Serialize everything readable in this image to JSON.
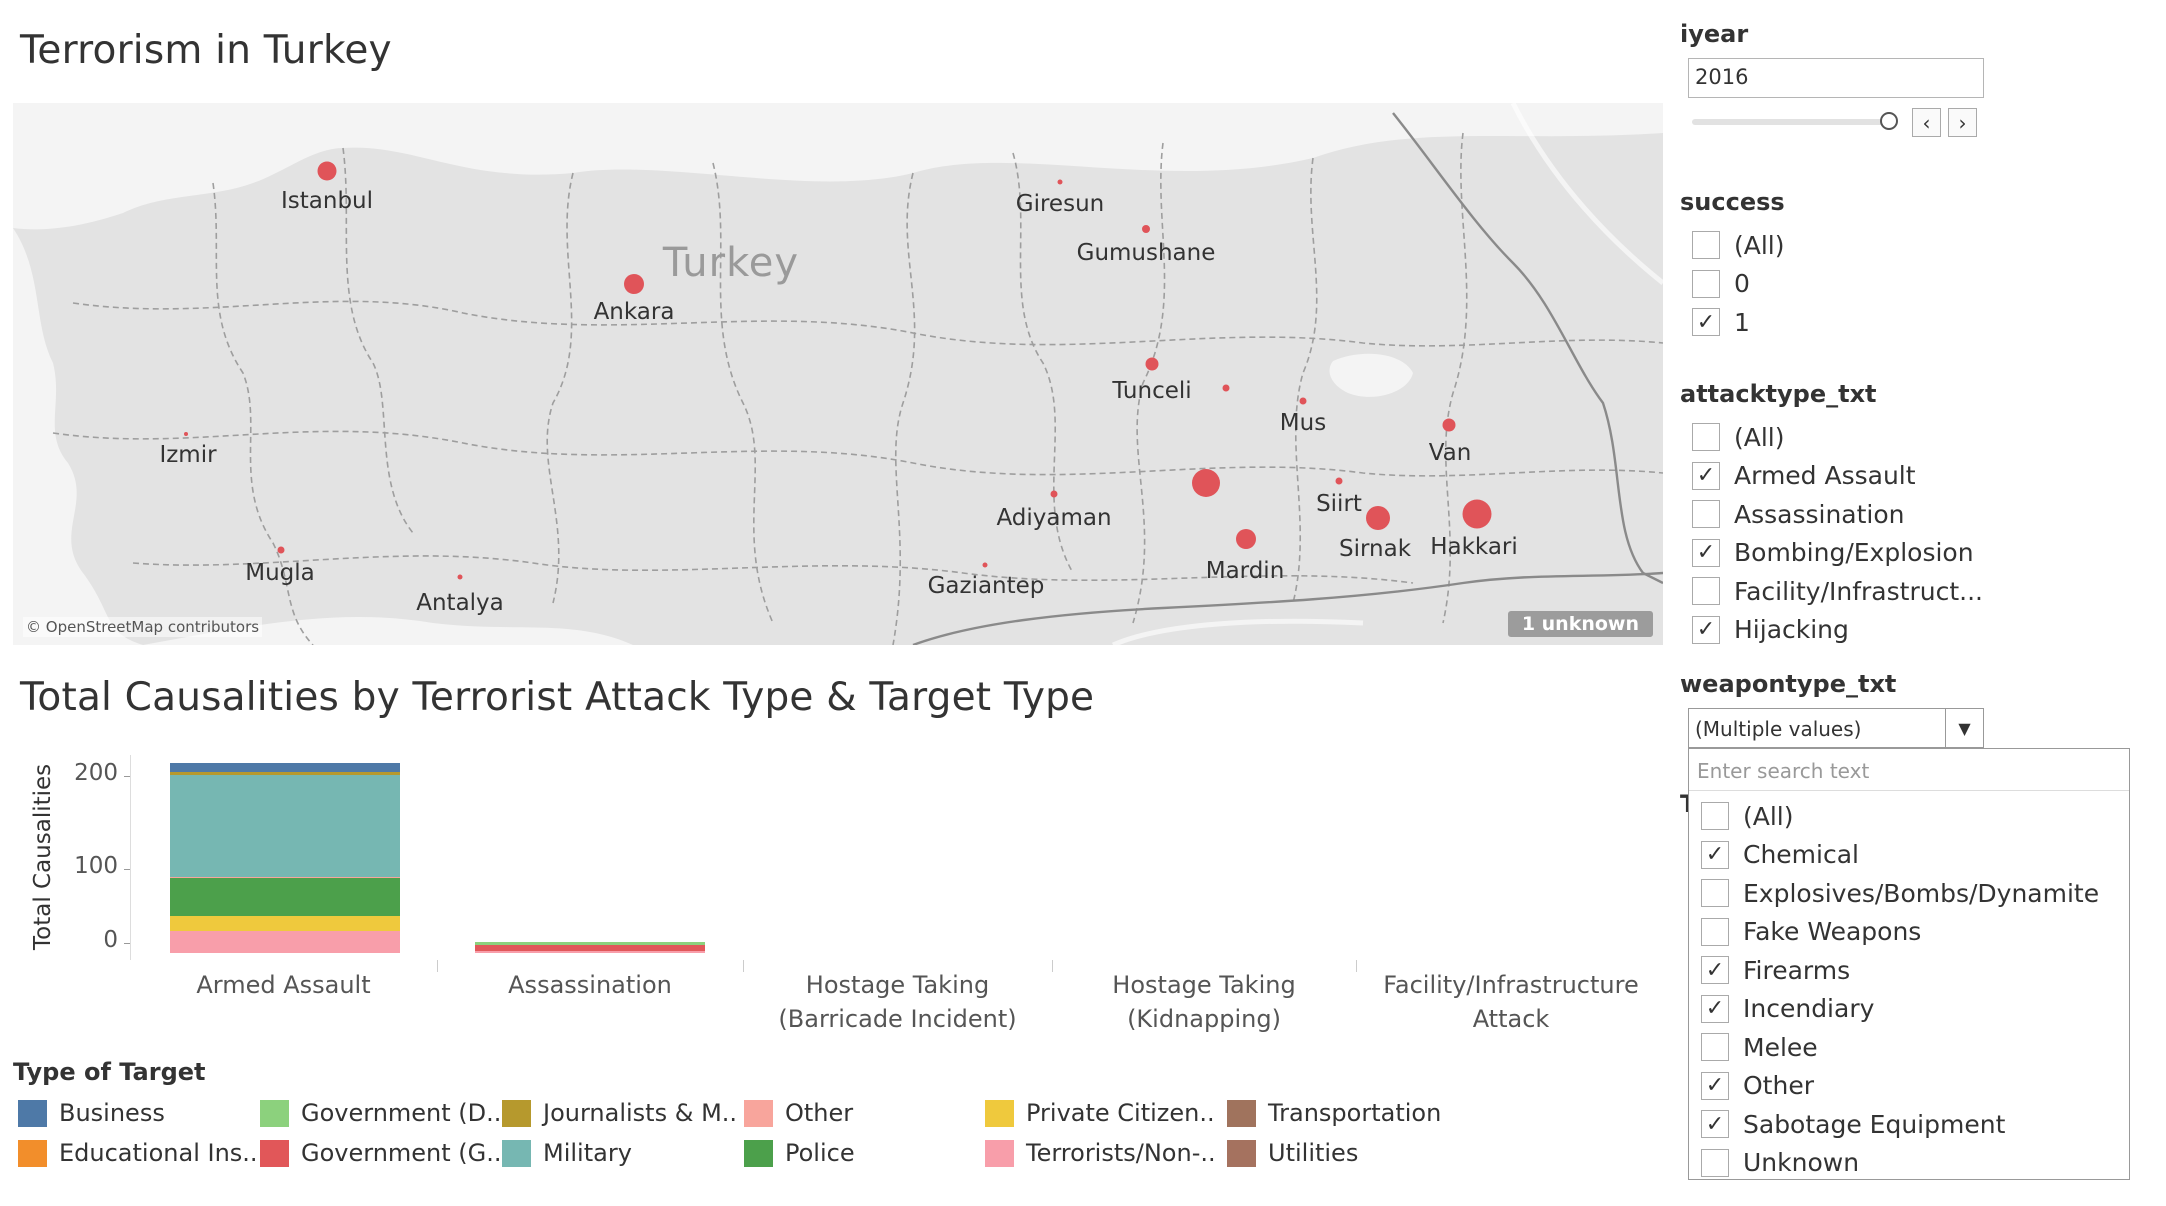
{
  "dashboard": {
    "title": "Terrorism in Turkey"
  },
  "map": {
    "country_label": "Turkey",
    "credit": "© OpenStreetMap contributors",
    "unknown_badge": "1 unknown",
    "dot_color": "#e05459",
    "cities": [
      "Istanbul",
      "Giresun",
      "Gumushane",
      "Ankara",
      "Tunceli",
      "Mus",
      "Van",
      "Izmir",
      "Adiyaman",
      "Siirt",
      "Sirnak",
      "Hakkari",
      "Mugla",
      "Mardin",
      "Gaziantep",
      "Antalya"
    ]
  },
  "chart": {
    "title": "Total Causalities by Terrorist Attack Type & Target Type",
    "ylabel": "Total Causalities",
    "yticks": [
      "200",
      "100",
      "0"
    ],
    "categories": [
      [
        "Armed Assault"
      ],
      [
        "Assassination"
      ],
      [
        "Hostage Taking",
        "(Barricade Incident)"
      ],
      [
        "Hostage Taking",
        "(Kidnapping)"
      ],
      [
        "Facility/Infrastructure",
        "Attack"
      ]
    ]
  },
  "chart_data": {
    "type": "bar",
    "stacked": true,
    "ylabel": "Total Causalities",
    "ylim": [
      -20,
      220
    ],
    "categories": [
      "Armed Assault",
      "Assassination",
      "Hostage Taking (Barricade Incident)",
      "Hostage Taking (Kidnapping)",
      "Facility/Infrastructure Attack"
    ],
    "series": [
      {
        "name": "Terrorists/Non-..",
        "color": "#f89eaa",
        "values": [
          24,
          2,
          0,
          0,
          0
        ]
      },
      {
        "name": "Private Citizen..",
        "color": "#efc93d",
        "values": [
          16,
          0,
          0,
          0,
          0
        ]
      },
      {
        "name": "Police",
        "color": "#4ca04b",
        "values": [
          42,
          0,
          0,
          0,
          0
        ]
      },
      {
        "name": "Government (G..",
        "color": "#e15759",
        "values": [
          0,
          7,
          0,
          0,
          0
        ]
      },
      {
        "name": "Other",
        "color": "#f8a59c",
        "values": [
          1,
          0,
          0,
          0,
          0
        ]
      },
      {
        "name": "Military",
        "color": "#76b7b2",
        "values": [
          111,
          0,
          0,
          0,
          0
        ]
      },
      {
        "name": "Government (D..",
        "color": "#8cd17d",
        "values": [
          0,
          3,
          0,
          0,
          0
        ]
      },
      {
        "name": "Journalists & M..",
        "color": "#b6992d",
        "values": [
          3,
          0,
          0,
          0,
          0
        ]
      },
      {
        "name": "Business",
        "color": "#4e79a7",
        "values": [
          10,
          0,
          0,
          0,
          0
        ]
      }
    ],
    "legend_title": "Type of Target",
    "legend": [
      {
        "name": "Business",
        "color": "#4e79a7"
      },
      {
        "name": "Educational Ins..",
        "color": "#f28e2b"
      },
      {
        "name": "Government (D..",
        "color": "#8cd17d"
      },
      {
        "name": "Government (G..",
        "color": "#e15759"
      },
      {
        "name": "Journalists & M..",
        "color": "#b6992d"
      },
      {
        "name": "Military",
        "color": "#76b7b2"
      },
      {
        "name": "Other",
        "color": "#f8a59c"
      },
      {
        "name": "Police",
        "color": "#4ca04b"
      },
      {
        "name": "Private Citizen..",
        "color": "#efc93d"
      },
      {
        "name": "Terrorists/Non-..",
        "color": "#f89eaa"
      },
      {
        "name": "Transportation",
        "color": "#a0735d"
      },
      {
        "name": "Utilities",
        "color": "#a5725f"
      }
    ]
  },
  "filters": {
    "iyear": {
      "title": "iyear",
      "value": "2016",
      "prev": "‹",
      "next": "›"
    },
    "success": {
      "title": "success",
      "options": [
        {
          "label": "(All)",
          "checked": false
        },
        {
          "label": "0",
          "checked": false
        },
        {
          "label": "1",
          "checked": true
        }
      ]
    },
    "attacktype": {
      "title": "attacktype_txt",
      "options": [
        {
          "label": "(All)",
          "checked": false
        },
        {
          "label": "Armed Assault",
          "checked": true
        },
        {
          "label": "Assassination",
          "checked": false
        },
        {
          "label": "Bombing/Explosion",
          "checked": true
        },
        {
          "label": "Facility/Infrastruct...",
          "checked": false
        },
        {
          "label": "Hijacking",
          "checked": true
        }
      ]
    },
    "weapontype": {
      "title": "weapontype_txt",
      "selected": "(Multiple values)",
      "search_placeholder": "Enter search text",
      "hidden_title_char": "T",
      "options": [
        {
          "label": "(All)",
          "checked": false
        },
        {
          "label": "Chemical",
          "checked": true
        },
        {
          "label": "Explosives/Bombs/Dynamite",
          "checked": false
        },
        {
          "label": "Fake Weapons",
          "checked": false
        },
        {
          "label": "Firearms",
          "checked": true
        },
        {
          "label": "Incendiary",
          "checked": true
        },
        {
          "label": "Melee",
          "checked": false
        },
        {
          "label": "Other",
          "checked": true
        },
        {
          "label": "Sabotage Equipment",
          "checked": true
        },
        {
          "label": "Unknown",
          "checked": false
        }
      ]
    }
  },
  "check_glyph": "✓"
}
